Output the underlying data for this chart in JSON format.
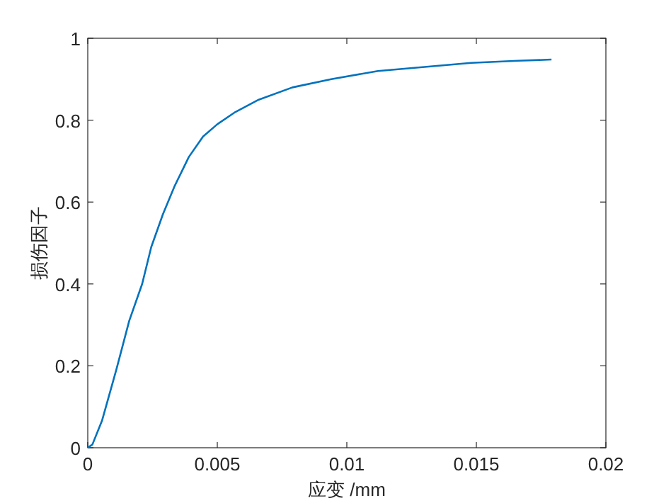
{
  "chart_data": {
    "type": "line",
    "xlabel": "应变 /mm",
    "ylabel": "损伤因子",
    "x": [
      0,
      0.00018,
      0.00055,
      0.0011,
      0.0016,
      0.0021,
      0.00245,
      0.0029,
      0.00336,
      0.0039,
      0.00445,
      0.005,
      0.0057,
      0.0066,
      0.0079,
      0.0094,
      0.0112,
      0.013,
      0.0148,
      0.0166,
      0.0179
    ],
    "series": [
      {
        "color": "#0072bd",
        "values": [
          0,
          0.008,
          0.066,
          0.19,
          0.31,
          0.4,
          0.49,
          0.57,
          0.64,
          0.71,
          0.76,
          0.79,
          0.82,
          0.85,
          0.88,
          0.9,
          0.92,
          0.93,
          0.94,
          0.945,
          0.948
        ]
      }
    ],
    "xlim": [
      0,
      0.02
    ],
    "xticks": [
      0,
      0.005,
      0.01,
      0.015,
      0.02
    ],
    "ylim": [
      0,
      1
    ],
    "yticks": [
      0,
      0.2,
      0.4,
      0.6,
      0.8,
      1
    ],
    "grid": false,
    "marker": "none",
    "line_style": "solid"
  }
}
